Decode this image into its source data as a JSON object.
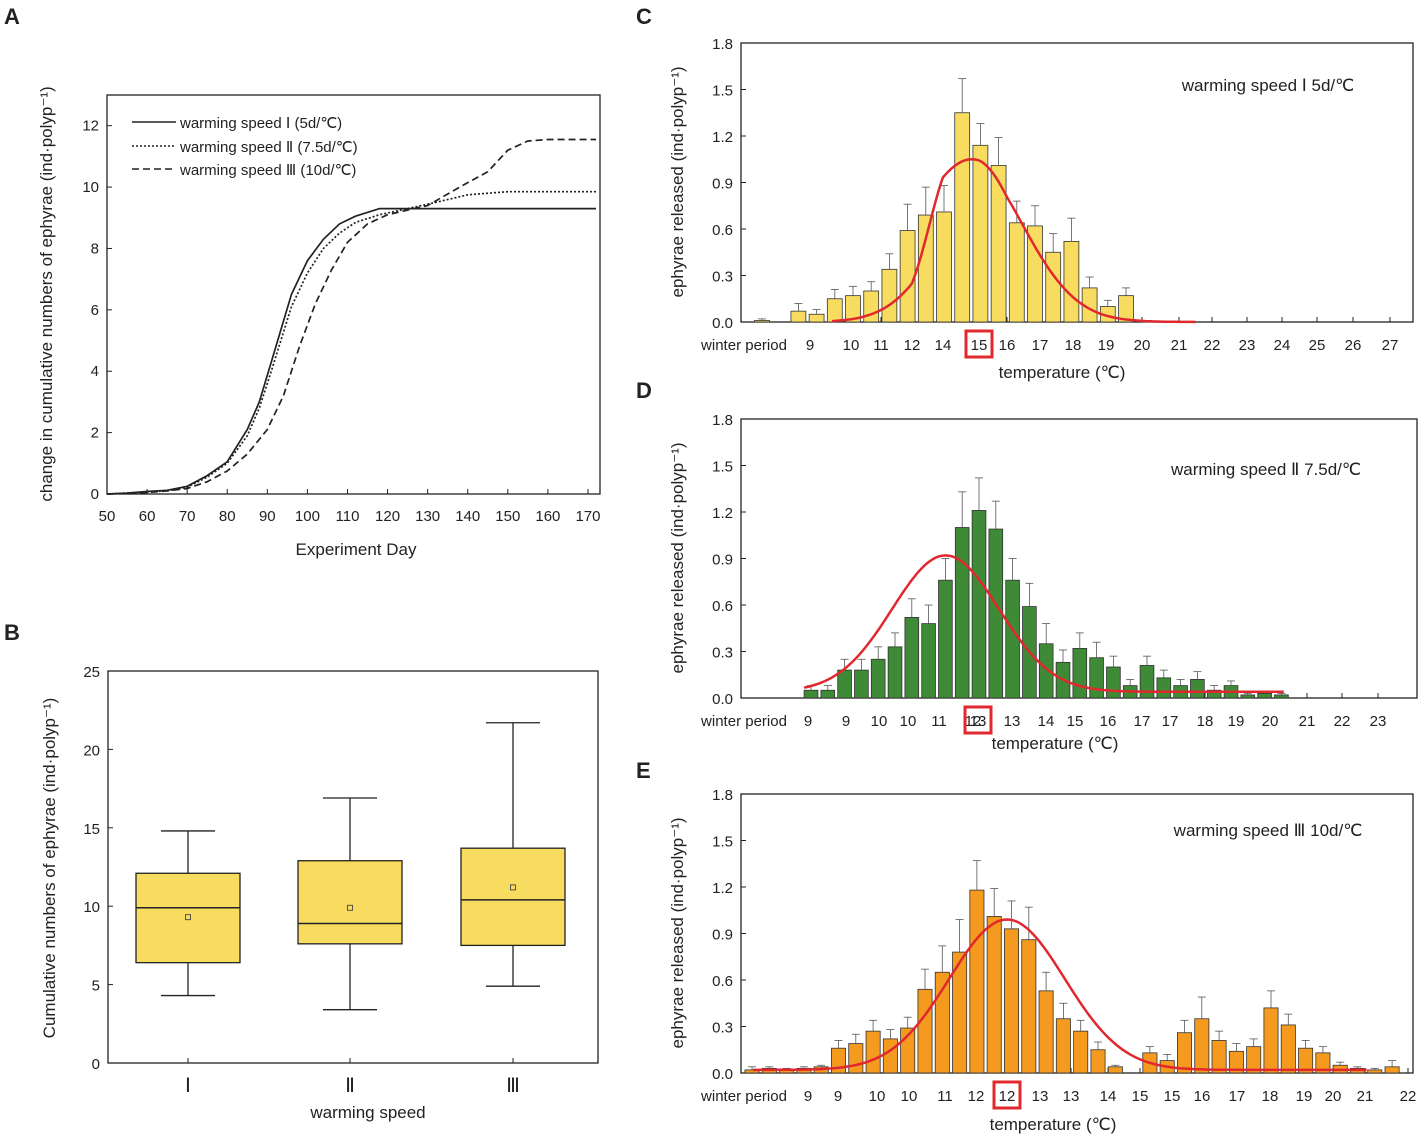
{
  "figure": {
    "panel_labels": {
      "A": "A",
      "B": "B",
      "C": "C",
      "D": "D",
      "E": "E"
    }
  },
  "chart_data": [
    {
      "id": "A",
      "type": "line",
      "xlabel": "Experiment Day",
      "ylabel": "change in cumulative numbers of ephyrae (ind·polyp⁻¹)",
      "xlim": [
        50,
        173
      ],
      "ylim": [
        0,
        13
      ],
      "xticks": [
        "50",
        "60",
        "70",
        "80",
        "90",
        "100",
        "110",
        "120",
        "130",
        "140",
        "150",
        "160",
        "170"
      ],
      "yticks": [
        "0",
        "2",
        "4",
        "6",
        "8",
        "10",
        "12"
      ],
      "series": [
        {
          "name": "warming speed  Ⅰ  (5d/℃)",
          "style": "solid",
          "x": [
            50,
            55,
            60,
            65,
            70,
            75,
            80,
            85,
            88,
            91,
            96,
            100,
            104,
            108,
            112,
            118,
            125,
            172
          ],
          "y": [
            0,
            0.03,
            0.08,
            0.12,
            0.25,
            0.6,
            1.05,
            2.1,
            3.0,
            4.3,
            6.5,
            7.6,
            8.3,
            8.8,
            9.05,
            9.3,
            9.3,
            9.3
          ]
        },
        {
          "name": "warming speed  Ⅱ  (7.5d/℃)",
          "style": "dotted",
          "x": [
            50,
            55,
            60,
            65,
            70,
            75,
            80,
            85,
            88,
            91,
            96,
            100,
            104,
            108,
            112,
            118,
            125,
            132,
            140,
            150,
            172
          ],
          "y": [
            0,
            0.03,
            0.07,
            0.1,
            0.22,
            0.55,
            1.0,
            1.9,
            2.8,
            4.0,
            6.1,
            7.2,
            8.0,
            8.5,
            8.85,
            9.1,
            9.3,
            9.5,
            9.75,
            9.85,
            9.85
          ]
        },
        {
          "name": "warming speed  Ⅲ  (10d/℃)",
          "style": "dashed",
          "x": [
            50,
            55,
            60,
            65,
            70,
            75,
            80,
            85,
            90,
            94,
            98,
            102,
            106,
            110,
            115,
            120,
            130,
            138,
            145,
            150,
            155,
            160,
            172
          ],
          "y": [
            0,
            0.02,
            0.05,
            0.1,
            0.18,
            0.4,
            0.75,
            1.3,
            2.1,
            3.2,
            4.8,
            6.2,
            7.3,
            8.2,
            8.8,
            9.1,
            9.4,
            10.0,
            10.5,
            11.2,
            11.5,
            11.55,
            11.55
          ]
        }
      ]
    },
    {
      "id": "B",
      "type": "box",
      "xlabel": "warming speed",
      "ylabel": "Cumulative numbers of ephyrae (ind·polyp⁻¹)",
      "ylim": [
        0,
        25
      ],
      "yticks": [
        "0",
        "5",
        "10",
        "15",
        "20",
        "25"
      ],
      "categories": [
        "Ⅰ",
        "Ⅱ",
        "Ⅲ"
      ],
      "boxes": [
        {
          "min": 4.3,
          "q1": 6.4,
          "median": 9.9,
          "mean": 9.3,
          "q3": 12.1,
          "max": 14.8
        },
        {
          "min": 3.4,
          "q1": 7.6,
          "median": 8.9,
          "mean": 9.9,
          "q3": 12.9,
          "max": 16.9
        },
        {
          "min": 4.9,
          "q1": 7.5,
          "median": 10.4,
          "mean": 11.2,
          "q3": 13.7,
          "max": 21.7
        }
      ],
      "color": "#f8dc5f"
    },
    {
      "id": "C",
      "type": "bar",
      "title": "warming speed  Ⅰ  5d/℃",
      "xlabel": "temperature (℃)",
      "ylabel": "ephyrae released (ind·polyp⁻¹)",
      "ylim": [
        0,
        1.8
      ],
      "yticks": [
        "0.0",
        "0.3",
        "0.6",
        "0.9",
        "1.2",
        "1.5",
        "1.8"
      ],
      "xticks": [
        "winter period",
        "9",
        "10",
        "11",
        "12",
        "14",
        "15",
        "16",
        "17",
        "18",
        "19",
        "20",
        "21",
        "22",
        "23",
        "24",
        "25",
        "26",
        "27"
      ],
      "highlight": "15",
      "color": "#f8dc5f",
      "values": [
        0.01,
        0,
        0.07,
        0.05,
        0.15,
        0.17,
        0.2,
        0.34,
        0.59,
        0.69,
        0.71,
        1.35,
        1.14,
        1.01,
        0.64,
        0.62,
        0.45,
        0.52,
        0.22,
        0.1,
        0.17
      ],
      "errors": [
        0.01,
        0,
        0.05,
        0.03,
        0.06,
        0.06,
        0.06,
        0.1,
        0.17,
        0.18,
        0.17,
        0.22,
        0.14,
        0.18,
        0.14,
        0.13,
        0.12,
        0.15,
        0.07,
        0.04,
        0.05
      ],
      "fit": {
        "peak": 1.05,
        "center": 14.8,
        "sigma": 1.65,
        "baseline": 0.0
      }
    },
    {
      "id": "D",
      "type": "bar",
      "title": "warming speed  Ⅱ  7.5d/℃",
      "xlabel": "temperature (℃)",
      "ylabel": "ephyrae released (ind·polyp⁻¹)",
      "ylim": [
        0,
        1.8
      ],
      "yticks": [
        "0.0",
        "0.3",
        "0.6",
        "0.9",
        "1.2",
        "1.5",
        "1.8"
      ],
      "xticks": [
        "winter period",
        "9",
        "9",
        "10",
        "10",
        "11",
        "12",
        "13",
        "13",
        "14",
        "15",
        "16",
        "17",
        "17",
        "18",
        "19",
        "20",
        "21",
        "22",
        "23"
      ],
      "highlight": "13",
      "color": "#3e8a36",
      "values": [
        0.05,
        0.05,
        0.18,
        0.18,
        0.25,
        0.33,
        0.52,
        0.48,
        0.76,
        1.1,
        1.21,
        1.09,
        0.76,
        0.59,
        0.35,
        0.23,
        0.32,
        0.26,
        0.2,
        0.08,
        0.21,
        0.13,
        0.08,
        0.12,
        0.05,
        0.08,
        0.02,
        0.03,
        0.02
      ],
      "errors": [
        0.03,
        0.03,
        0.07,
        0.07,
        0.08,
        0.09,
        0.12,
        0.12,
        0.14,
        0.23,
        0.21,
        0.18,
        0.14,
        0.15,
        0.13,
        0.08,
        0.1,
        0.1,
        0.07,
        0.04,
        0.06,
        0.05,
        0.04,
        0.05,
        0.03,
        0.03,
        0.01,
        0.01,
        0.01
      ],
      "fit": {
        "peak": 0.88,
        "center": 12.9,
        "sigma": 1.55,
        "baseline": 0.04
      }
    },
    {
      "id": "E",
      "type": "bar",
      "title": "warming speed Ⅲ 10d/℃",
      "xlabel": "temperature (℃)",
      "ylabel": "ephyrae released (ind·polyp⁻¹)",
      "ylim": [
        0,
        1.8
      ],
      "yticks": [
        "0.0",
        "0.3",
        "0.6",
        "0.9",
        "1.2",
        "1.5",
        "1.8"
      ],
      "xticks": [
        "winter period",
        "9",
        "9",
        "10",
        "10",
        "11",
        "12",
        "12",
        "13",
        "13",
        "14",
        "15",
        "15",
        "16",
        "17",
        "18",
        "19",
        "20",
        "21",
        "22"
      ],
      "highlight": "12",
      "color": "#f39a1f",
      "values": [
        0.02,
        0.03,
        0.02,
        0.03,
        0.04,
        0.16,
        0.19,
        0.27,
        0.22,
        0.29,
        0.54,
        0.65,
        0.78,
        1.18,
        1.01,
        0.93,
        0.86,
        0.53,
        0.35,
        0.27,
        0.15,
        0.04,
        0,
        0.13,
        0.08,
        0.26,
        0.35,
        0.21,
        0.14,
        0.17,
        0.42,
        0.31,
        0.16,
        0.13,
        0.05,
        0.03,
        0.02,
        0.04
      ],
      "errors": [
        0.02,
        0.01,
        0.01,
        0.01,
        0.01,
        0.05,
        0.06,
        0.07,
        0.06,
        0.07,
        0.13,
        0.17,
        0.21,
        0.19,
        0.18,
        0.18,
        0.21,
        0.12,
        0.1,
        0.07,
        0.05,
        0.01,
        0,
        0.04,
        0.04,
        0.08,
        0.14,
        0.06,
        0.05,
        0.05,
        0.11,
        0.07,
        0.05,
        0.04,
        0.02,
        0.01,
        0.01,
        0.04
      ],
      "fit": {
        "peak": 0.97,
        "center": 12.0,
        "sigma": 1.75,
        "baseline": 0.02
      }
    }
  ]
}
